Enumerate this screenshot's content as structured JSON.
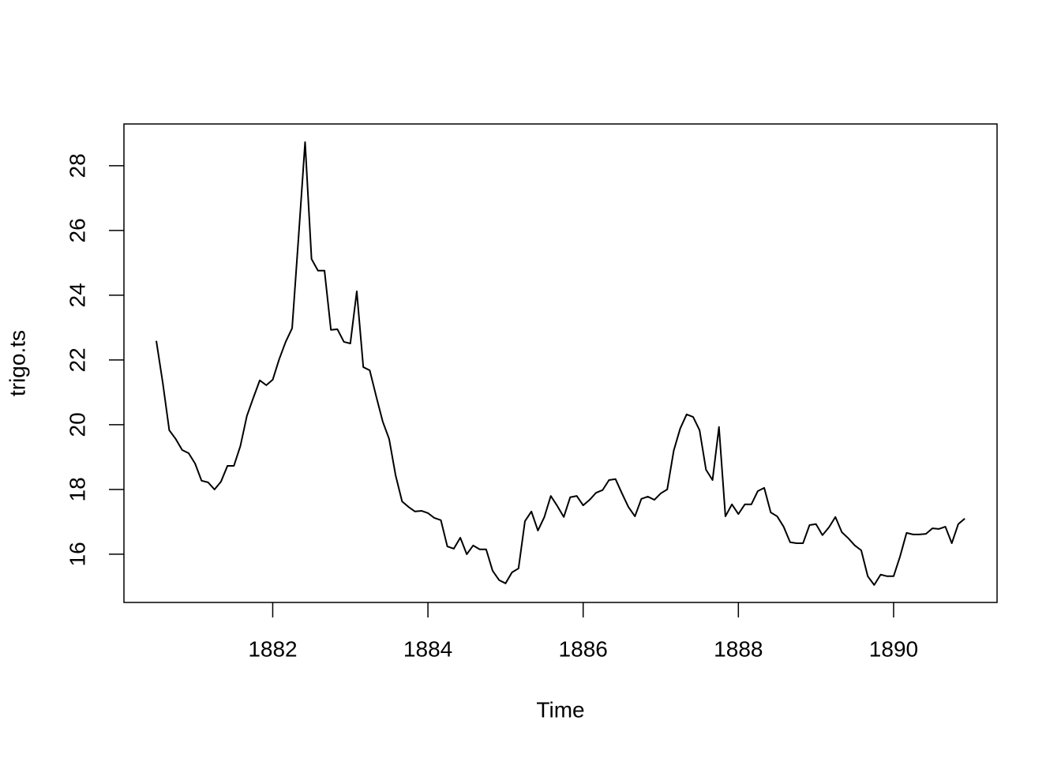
{
  "chart_data": {
    "type": "line",
    "x_label": "Time",
    "y_label": "trigo.ts",
    "x": [
      1880.5,
      1880.583,
      1880.667,
      1880.75,
      1880.833,
      1880.917,
      1881,
      1881.083,
      1881.167,
      1881.25,
      1881.333,
      1881.417,
      1881.5,
      1881.583,
      1881.667,
      1881.75,
      1881.833,
      1881.917,
      1882,
      1882.083,
      1882.167,
      1882.25,
      1882.333,
      1882.417,
      1882.5,
      1882.583,
      1882.667,
      1882.75,
      1882.833,
      1882.917,
      1883,
      1883.083,
      1883.167,
      1883.25,
      1883.333,
      1883.417,
      1883.5,
      1883.583,
      1883.667,
      1883.75,
      1883.833,
      1883.917,
      1884,
      1884.083,
      1884.167,
      1884.25,
      1884.333,
      1884.417,
      1884.5,
      1884.583,
      1884.667,
      1884.75,
      1884.833,
      1884.917,
      1885,
      1885.083,
      1885.167,
      1885.25,
      1885.333,
      1885.417,
      1885.5,
      1885.583,
      1885.667,
      1885.75,
      1885.833,
      1885.917,
      1886,
      1886.083,
      1886.167,
      1886.25,
      1886.333,
      1886.417,
      1886.5,
      1886.583,
      1886.667,
      1886.75,
      1886.833,
      1886.917,
      1887,
      1887.083,
      1887.167,
      1887.25,
      1887.333,
      1887.417,
      1887.5,
      1887.583,
      1887.667,
      1887.75,
      1887.833,
      1887.917,
      1888,
      1888.083,
      1888.167,
      1888.25,
      1888.333,
      1888.417,
      1888.5,
      1888.583,
      1888.667,
      1888.75,
      1888.833,
      1888.917,
      1889,
      1889.083,
      1889.167,
      1889.25,
      1889.333,
      1889.417,
      1889.5,
      1889.583,
      1889.667,
      1889.75,
      1889.833,
      1889.917,
      1890,
      1890.083,
      1890.167,
      1890.25,
      1890.333,
      1890.417,
      1890.5,
      1890.583,
      1890.667,
      1890.75,
      1890.833,
      1890.917
    ],
    "values": [
      22.59,
      21.3,
      19.83,
      19.56,
      19.22,
      19.12,
      18.8,
      18.27,
      18.22,
      18.0,
      18.24,
      18.73,
      18.73,
      19.34,
      20.27,
      20.83,
      21.37,
      21.22,
      21.39,
      22.02,
      22.56,
      22.98,
      25.8,
      28.73,
      25.12,
      24.76,
      24.76,
      22.93,
      22.95,
      22.56,
      22.51,
      24.12,
      21.78,
      21.68,
      20.88,
      20.1,
      19.56,
      18.44,
      17.63,
      17.46,
      17.32,
      17.34,
      17.27,
      17.12,
      17.05,
      16.24,
      16.17,
      16.51,
      16.0,
      16.27,
      16.15,
      16.15,
      15.49,
      15.2,
      15.1,
      15.44,
      15.56,
      17.02,
      17.32,
      16.73,
      17.15,
      17.8,
      17.49,
      17.15,
      17.76,
      17.8,
      17.51,
      17.68,
      17.9,
      17.98,
      18.29,
      18.32,
      17.88,
      17.46,
      17.17,
      17.71,
      17.78,
      17.68,
      17.88,
      18.0,
      19.2,
      19.88,
      20.32,
      20.24,
      19.83,
      18.61,
      18.29,
      19.93,
      17.17,
      17.54,
      17.24,
      17.54,
      17.54,
      17.95,
      18.05,
      17.29,
      17.17,
      16.85,
      16.37,
      16.34,
      16.34,
      16.9,
      16.93,
      16.59,
      16.83,
      17.15,
      16.68,
      16.49,
      16.27,
      16.12,
      15.32,
      15.05,
      15.37,
      15.32,
      15.32,
      15.93,
      16.66,
      16.61,
      16.61,
      16.63,
      16.8,
      16.78,
      16.85,
      16.34,
      16.93,
      17.1
    ],
    "color": "#000000",
    "xlim": [
      1880.083,
      1891.333
    ],
    "xticks": [
      1882,
      1884,
      1886,
      1888,
      1890
    ],
    "ylim": [
      14.51,
      29.29
    ],
    "yticks": [
      16,
      18,
      20,
      22,
      24,
      26,
      28
    ]
  }
}
